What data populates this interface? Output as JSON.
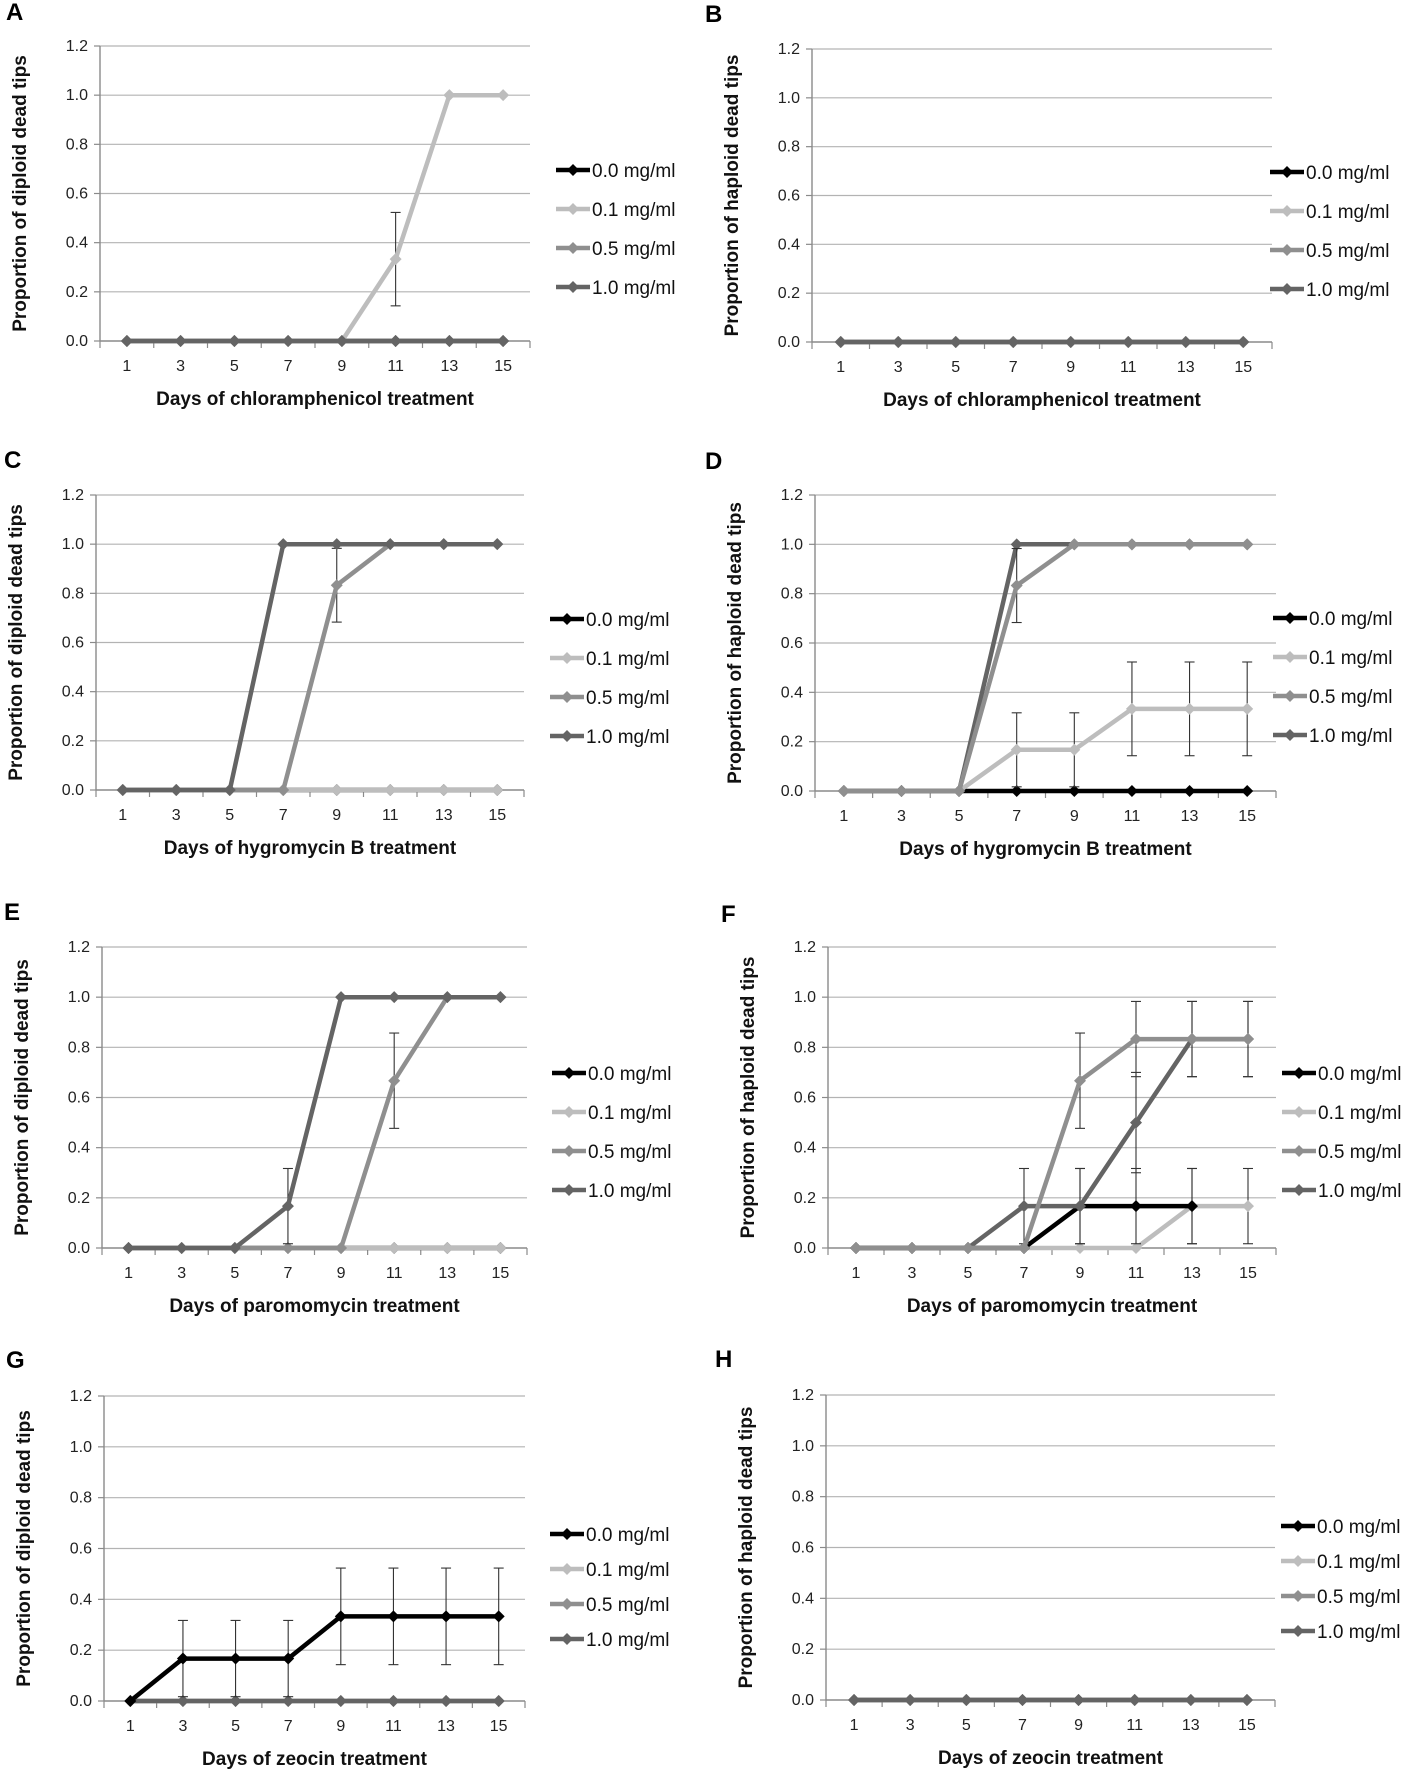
{
  "figure_title": "",
  "colors": {
    "0.0 mg/ml": "#000000",
    "0.1 mg/ml": "#bdbdbd",
    "0.5 mg/ml": "#8f8f8f",
    "1.0 mg/ml": "#646464",
    "grid": "#b3b3b3",
    "axis": "#8a8a8a",
    "error_bar": "#333333"
  },
  "chart_data": [
    {
      "panel": "A",
      "type": "line",
      "title": "",
      "xlabel": "Days of chloramphenicol treatment",
      "ylabel": "Proportion of diploid dead tips",
      "categories": [
        "1",
        "3",
        "5",
        "7",
        "9",
        "11",
        "13",
        "15"
      ],
      "ylim": [
        0,
        1.2
      ],
      "yticks": [
        "0.0",
        "0.2",
        "0.4",
        "0.6",
        "0.8",
        "1.0",
        "1.2"
      ],
      "legend": [
        "0.0 mg/ml",
        "0.1 mg/ml",
        "0.5 mg/ml",
        "1.0 mg/ml"
      ],
      "series": [
        {
          "name": "0.0 mg/ml",
          "values": [
            0,
            0,
            0,
            0,
            0,
            0,
            0,
            0
          ]
        },
        {
          "name": "0.1 mg/ml",
          "values": [
            0,
            0,
            0,
            0,
            0,
            0.333,
            1,
            1
          ],
          "errors": [
            0,
            0,
            0,
            0,
            0,
            0.19,
            0,
            0
          ]
        },
        {
          "name": "0.5 mg/ml",
          "values": [
            0,
            0,
            0,
            0,
            0,
            0,
            0,
            0
          ]
        },
        {
          "name": "1.0 mg/ml",
          "values": [
            0,
            0,
            0,
            0,
            0,
            0,
            0,
            0
          ]
        }
      ]
    },
    {
      "panel": "B",
      "type": "line",
      "title": "",
      "xlabel": "Days of chloramphenicol treatment",
      "ylabel": "Proportion of haploid dead tips",
      "categories": [
        "1",
        "3",
        "5",
        "7",
        "9",
        "11",
        "13",
        "15"
      ],
      "ylim": [
        0,
        1.2
      ],
      "yticks": [
        "0.0",
        "0.2",
        "0.4",
        "0.6",
        "0.8",
        "1.0",
        "1.2"
      ],
      "legend": [
        "0.0 mg/ml",
        "0.1 mg/ml",
        "0.5 mg/ml",
        "1.0 mg/ml"
      ],
      "series": [
        {
          "name": "0.0 mg/ml",
          "values": [
            0,
            0,
            0,
            0,
            0,
            0,
            0,
            0
          ]
        },
        {
          "name": "0.1 mg/ml",
          "values": [
            0,
            0,
            0,
            0,
            0,
            0,
            0,
            0
          ]
        },
        {
          "name": "0.5 mg/ml",
          "values": [
            0,
            0,
            0,
            0,
            0,
            0,
            0,
            0
          ]
        },
        {
          "name": "1.0 mg/ml",
          "values": [
            0,
            0,
            0,
            0,
            0,
            0,
            0,
            0
          ]
        }
      ]
    },
    {
      "panel": "C",
      "type": "line",
      "title": "",
      "xlabel": "Days of hygromycin B treatment",
      "ylabel": "Proportion of diploid dead tips",
      "categories": [
        "1",
        "3",
        "5",
        "7",
        "9",
        "11",
        "13",
        "15"
      ],
      "ylim": [
        0,
        1.2
      ],
      "yticks": [
        "0.0",
        "0.2",
        "0.4",
        "0.6",
        "0.8",
        "1.0",
        "1.2"
      ],
      "legend": [
        "0.0 mg/ml",
        "0.1 mg/ml",
        "0.5 mg/ml",
        "1.0 mg/ml"
      ],
      "series": [
        {
          "name": "0.0 mg/ml",
          "values": [
            0,
            0,
            0,
            0,
            0,
            0,
            0,
            0
          ]
        },
        {
          "name": "0.1 mg/ml",
          "values": [
            0,
            0,
            0,
            0,
            0,
            0,
            0,
            0
          ]
        },
        {
          "name": "0.5 mg/ml",
          "values": [
            0,
            0,
            0,
            0,
            0.833,
            1,
            1,
            1
          ],
          "errors": [
            0,
            0,
            0,
            0,
            0.15,
            0,
            0,
            0
          ]
        },
        {
          "name": "1.0 mg/ml",
          "values": [
            0,
            0,
            0,
            1,
            1,
            1,
            1,
            1
          ]
        }
      ]
    },
    {
      "panel": "D",
      "type": "line",
      "title": "",
      "xlabel": "Days of hygromycin B treatment",
      "ylabel": "Proportion of haploid dead tips",
      "categories": [
        "1",
        "3",
        "5",
        "7",
        "9",
        "11",
        "13",
        "15"
      ],
      "ylim": [
        0,
        1.2
      ],
      "yticks": [
        "0.0",
        "0.2",
        "0.4",
        "0.6",
        "0.8",
        "1.0",
        "1.2"
      ],
      "legend": [
        "0.0 mg/ml",
        "0.1 mg/ml",
        "0.5 mg/ml",
        "1.0 mg/ml"
      ],
      "series": [
        {
          "name": "0.0 mg/ml",
          "values": [
            0,
            0,
            0,
            0,
            0,
            0,
            0,
            0
          ]
        },
        {
          "name": "0.1 mg/ml",
          "values": [
            0,
            0,
            0,
            0.167,
            0.167,
            0.333,
            0.333,
            0.333
          ],
          "errors": [
            0,
            0,
            0,
            0.15,
            0.15,
            0.19,
            0.19,
            0.19
          ]
        },
        {
          "name": "0.5 mg/ml",
          "values": [
            0,
            0,
            0,
            0.833,
            1,
            1,
            1,
            1
          ],
          "errors": [
            0,
            0,
            0,
            0.15,
            0,
            0,
            0,
            0
          ]
        },
        {
          "name": "1.0 mg/ml",
          "values": [
            0,
            0,
            0,
            1,
            1,
            1,
            1,
            1
          ]
        }
      ]
    },
    {
      "panel": "E",
      "type": "line",
      "title": "",
      "xlabel": "Days of paromomycin treatment",
      "ylabel": "Proportion of diploid dead tips",
      "categories": [
        "1",
        "3",
        "5",
        "7",
        "9",
        "11",
        "13",
        "15"
      ],
      "ylim": [
        0,
        1.2
      ],
      "yticks": [
        "0.0",
        "0.2",
        "0.4",
        "0.6",
        "0.8",
        "1.0",
        "1.2"
      ],
      "legend": [
        "0.0 mg/ml",
        "0.1 mg/ml",
        "0.5 mg/ml",
        "1.0 mg/ml"
      ],
      "series": [
        {
          "name": "0.0 mg/ml",
          "values": [
            0,
            0,
            0,
            0,
            0,
            0,
            0,
            0
          ]
        },
        {
          "name": "0.1 mg/ml",
          "values": [
            0,
            0,
            0,
            0,
            0,
            0,
            0,
            0
          ]
        },
        {
          "name": "0.5 mg/ml",
          "values": [
            0,
            0,
            0,
            0,
            0,
            0.667,
            1,
            1
          ],
          "errors": [
            0,
            0,
            0,
            0,
            0,
            0.19,
            0,
            0
          ]
        },
        {
          "name": "1.0 mg/ml",
          "values": [
            0,
            0,
            0,
            0.167,
            1,
            1,
            1,
            1
          ],
          "errors": [
            0,
            0,
            0,
            0.15,
            0,
            0,
            0,
            0
          ]
        }
      ]
    },
    {
      "panel": "F",
      "type": "line",
      "title": "",
      "xlabel": "Days of paromomycin treatment",
      "ylabel": "Proportion of haploid dead tips",
      "categories": [
        "1",
        "3",
        "5",
        "7",
        "9",
        "11",
        "13",
        "15"
      ],
      "ylim": [
        0,
        1.2
      ],
      "yticks": [
        "0.0",
        "0.2",
        "0.4",
        "0.6",
        "0.8",
        "1.0",
        "1.2"
      ],
      "legend": [
        "0.0 mg/ml",
        "0.1 mg/ml",
        "0.5 mg/ml",
        "1.0 mg/ml"
      ],
      "series": [
        {
          "name": "0.0 mg/ml",
          "values": [
            0,
            0,
            0,
            0,
            0.167,
            0.167,
            0.167,
            null
          ],
          "errors": [
            0,
            0,
            0,
            0,
            0.15,
            0.15,
            0.15,
            0
          ]
        },
        {
          "name": "0.1 mg/ml",
          "values": [
            0,
            0,
            0,
            0,
            0,
            0,
            0.167,
            0.167
          ],
          "errors": [
            0,
            0,
            0,
            0,
            0,
            0,
            0.15,
            0.15
          ]
        },
        {
          "name": "0.5 mg/ml",
          "values": [
            0,
            0,
            0,
            0,
            0.667,
            0.833,
            0.833,
            0.833
          ],
          "errors": [
            0,
            0,
            0,
            0,
            0.19,
            0.15,
            0.15,
            0.15
          ]
        },
        {
          "name": "1.0 mg/ml",
          "values": [
            0,
            0,
            0,
            0.167,
            0.167,
            0.5,
            0.833,
            0.833
          ],
          "errors": [
            0,
            0,
            0,
            0.15,
            0.15,
            0.2,
            0.15,
            0.15
          ]
        }
      ]
    },
    {
      "panel": "G",
      "type": "line",
      "title": "",
      "xlabel": "Days of zeocin treatment",
      "ylabel": "Proportion of diploid dead tips",
      "categories": [
        "1",
        "3",
        "5",
        "7",
        "9",
        "11",
        "13",
        "15"
      ],
      "ylim": [
        0,
        1.2
      ],
      "yticks": [
        "0.0",
        "0.2",
        "0.4",
        "0.6",
        "0.8",
        "1.0",
        "1.2"
      ],
      "legend": [
        "0.0 mg/ml",
        "0.1 mg/ml",
        "0.5 mg/ml",
        "1.0 mg/ml"
      ],
      "series": [
        {
          "name": "0.0 mg/ml",
          "values": [
            0,
            0.167,
            0.167,
            0.167,
            0.333,
            0.333,
            0.333,
            0.333
          ],
          "errors": [
            0,
            0.15,
            0.15,
            0.15,
            0.19,
            0.19,
            0.19,
            0.19
          ]
        },
        {
          "name": "0.1 mg/ml",
          "values": [
            0,
            0,
            0,
            0,
            0,
            0,
            0,
            0
          ]
        },
        {
          "name": "0.5 mg/ml",
          "values": [
            0,
            0,
            0,
            0,
            0,
            0,
            0,
            0
          ]
        },
        {
          "name": "1.0 mg/ml",
          "values": [
            0,
            0,
            0,
            0,
            0,
            0,
            0,
            0
          ]
        }
      ]
    },
    {
      "panel": "H",
      "type": "line",
      "title": "",
      "xlabel": "Days of zeocin treatment",
      "ylabel": "Proportion of haploid dead tips",
      "categories": [
        "1",
        "3",
        "5",
        "7",
        "9",
        "11",
        "13",
        "15"
      ],
      "ylim": [
        0,
        1.2
      ],
      "yticks": [
        "0.0",
        "0.2",
        "0.4",
        "0.6",
        "0.8",
        "1.0",
        "1.2"
      ],
      "legend": [
        "0.0 mg/ml",
        "0.1 mg/ml",
        "0.5 mg/ml",
        "1.0 mg/ml"
      ],
      "series": [
        {
          "name": "0.0 mg/ml",
          "values": [
            0,
            0,
            0,
            0,
            0,
            0,
            0,
            0
          ]
        },
        {
          "name": "0.1 mg/ml",
          "values": [
            0,
            0,
            0,
            0,
            0,
            0,
            0,
            0
          ]
        },
        {
          "name": "0.5 mg/ml",
          "values": [
            0,
            0,
            0,
            0,
            0,
            0,
            0,
            0
          ]
        },
        {
          "name": "1.0 mg/ml",
          "values": [
            0,
            0,
            0,
            0,
            0,
            0,
            0,
            0
          ]
        }
      ]
    }
  ]
}
